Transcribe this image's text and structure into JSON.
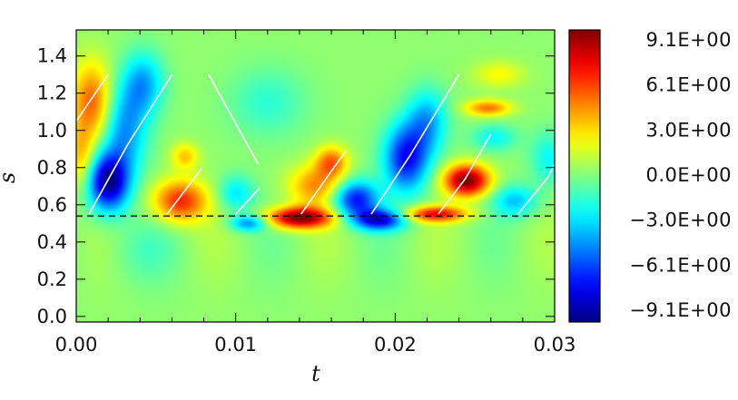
{
  "chart_data": {
    "type": "heatmap",
    "title": "",
    "xlabel": "t",
    "ylabel": "s",
    "xlim": [
      0.0,
      0.03
    ],
    "ylim": [
      -0.03,
      1.54
    ],
    "x_ticks": [
      0.0,
      0.01,
      0.02,
      0.03
    ],
    "x_tick_labels": [
      "0.00",
      "0.01",
      "0.02",
      "0.03"
    ],
    "y_ticks": [
      0.0,
      0.2,
      0.4,
      0.6,
      0.8,
      1.0,
      1.2,
      1.4
    ],
    "y_tick_labels": [
      "0.0",
      "0.2",
      "0.4",
      "0.6",
      "0.8",
      "1.0",
      "1.2",
      "1.4"
    ],
    "colormap": "jet",
    "colorbar": {
      "range": [
        -9.1,
        9.1
      ],
      "labels": [
        "9.1E+00",
        "6.1E+00",
        "3.0E+00",
        "0.0E+00",
        "−3.0E+00",
        "−6.1E+00",
        "−9.1E+00"
      ],
      "values": [
        9.1,
        6.1,
        3.0,
        0.0,
        -3.0,
        -6.1,
        -9.1
      ]
    },
    "reference_line": {
      "style": "dashed",
      "color": "#000000",
      "s": 0.54
    },
    "features": [
      {
        "t": 0.001,
        "s": 1.15,
        "value": 5.0,
        "sx": 0.0009,
        "sy": 0.15
      },
      {
        "t": 0.0003,
        "s": 0.85,
        "value": 3.0,
        "sx": 0.0006,
        "sy": 0.12
      },
      {
        "t": 0.002,
        "s": 0.72,
        "value": -9.0,
        "sx": 0.0009,
        "sy": 0.11
      },
      {
        "t": 0.003,
        "s": 1.0,
        "value": -4.5,
        "sx": 0.001,
        "sy": 0.17
      },
      {
        "t": 0.0042,
        "s": 1.25,
        "value": -4.0,
        "sx": 0.0009,
        "sy": 0.12
      },
      {
        "t": 0.0065,
        "s": 0.62,
        "value": 6.0,
        "sx": 0.0012,
        "sy": 0.08
      },
      {
        "t": 0.0068,
        "s": 0.86,
        "value": 3.0,
        "sx": 0.0006,
        "sy": 0.05
      },
      {
        "t": 0.01,
        "s": 0.66,
        "value": -3.0,
        "sx": 0.0008,
        "sy": 0.07
      },
      {
        "t": 0.0108,
        "s": 0.5,
        "value": -4.5,
        "sx": 0.0008,
        "sy": 0.03
      },
      {
        "t": 0.014,
        "s": 0.53,
        "value": 9.0,
        "sx": 0.0014,
        "sy": 0.04
      },
      {
        "t": 0.015,
        "s": 0.7,
        "value": 4.0,
        "sx": 0.0012,
        "sy": 0.08
      },
      {
        "t": 0.016,
        "s": 0.83,
        "value": 4.5,
        "sx": 0.0007,
        "sy": 0.06
      },
      {
        "t": 0.0175,
        "s": 0.63,
        "value": -7.0,
        "sx": 0.001,
        "sy": 0.07
      },
      {
        "t": 0.019,
        "s": 0.52,
        "value": -7.5,
        "sx": 0.0011,
        "sy": 0.04
      },
      {
        "t": 0.0207,
        "s": 0.85,
        "value": -7.0,
        "sx": 0.001,
        "sy": 0.13
      },
      {
        "t": 0.022,
        "s": 1.05,
        "value": -4.0,
        "sx": 0.0009,
        "sy": 0.12
      },
      {
        "t": 0.0225,
        "s": 0.55,
        "value": 6.5,
        "sx": 0.0014,
        "sy": 0.03
      },
      {
        "t": 0.0245,
        "s": 0.73,
        "value": 9.0,
        "sx": 0.001,
        "sy": 0.06
      },
      {
        "t": 0.0258,
        "s": 1.12,
        "value": 4.5,
        "sx": 0.001,
        "sy": 0.03
      },
      {
        "t": 0.0262,
        "s": 0.96,
        "value": -2.5,
        "sx": 0.001,
        "sy": 0.05
      },
      {
        "t": 0.0275,
        "s": 0.62,
        "value": -3.5,
        "sx": 0.001,
        "sy": 0.06
      },
      {
        "t": 0.0265,
        "s": 1.3,
        "value": 2.0,
        "sx": 0.0011,
        "sy": 0.05
      },
      {
        "t": 0.0296,
        "s": 0.85,
        "value": -2.5,
        "sx": 0.0008,
        "sy": 0.1
      },
      {
        "t": 0.012,
        "s": 1.15,
        "value": -1.8,
        "sx": 0.0017,
        "sy": 0.13
      },
      {
        "t": 0.004,
        "s": 0.35,
        "value": -1.0,
        "sx": 0.0015,
        "sy": 0.12
      }
    ],
    "white_lines": [
      [
        [
          0.0,
          1.05
        ],
        [
          0.002,
          1.3
        ]
      ],
      [
        [
          0.0008,
          0.55
        ],
        [
          0.0032,
          0.92
        ],
        [
          0.006,
          1.3
        ]
      ],
      [
        [
          0.0057,
          0.55
        ],
        [
          0.0079,
          0.8
        ]
      ],
      [
        [
          0.0083,
          1.3
        ],
        [
          0.0114,
          0.82
        ]
      ],
      [
        [
          0.01,
          0.55
        ],
        [
          0.0115,
          0.69
        ]
      ],
      [
        [
          0.0141,
          0.55
        ],
        [
          0.0169,
          0.89
        ]
      ],
      [
        [
          0.0185,
          0.55
        ],
        [
          0.0209,
          0.86
        ],
        [
          0.024,
          1.3
        ]
      ],
      [
        [
          0.0227,
          0.55
        ],
        [
          0.0244,
          0.74
        ],
        [
          0.026,
          0.98
        ]
      ],
      [
        [
          0.0277,
          0.55
        ],
        [
          0.0296,
          0.75
        ],
        [
          0.03,
          0.82
        ]
      ]
    ]
  }
}
